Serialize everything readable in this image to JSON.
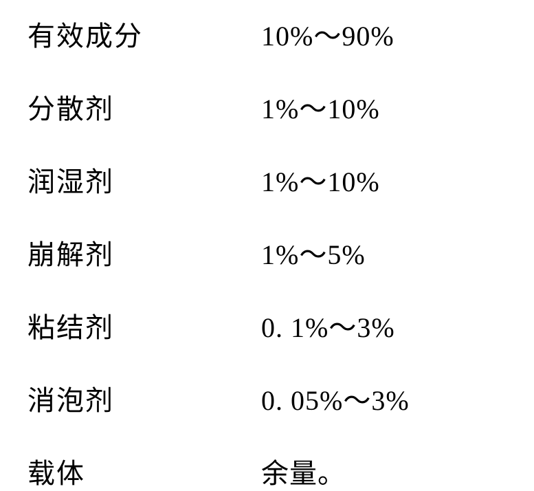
{
  "composition_table": {
    "type": "table",
    "background_color": "#ffffff",
    "text_color": "#000000",
    "font_family": "SimSun",
    "label_fontsize": 40,
    "value_fontsize": 40,
    "label_column_width": 340,
    "row_gap": 48,
    "rows": [
      {
        "label": "有效成分",
        "value": "10%～90%"
      },
      {
        "label": "分散剂",
        "value": "1%～10%"
      },
      {
        "label": "润湿剂",
        "value": "1%～10%"
      },
      {
        "label": "崩解剂",
        "value": "1%～5%"
      },
      {
        "label": "粘结剂",
        "value": "0. 1%～3%"
      },
      {
        "label": "消泡剂",
        "value": "0. 05%～3%"
      },
      {
        "label": "载体",
        "value": "余量。"
      }
    ]
  }
}
